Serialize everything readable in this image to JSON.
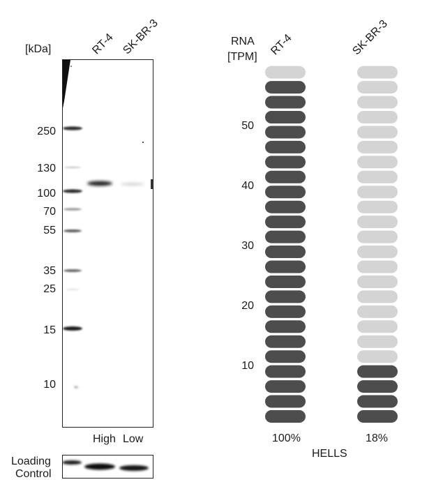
{
  "western_blot": {
    "unit_label": "[kDa]",
    "lanes": [
      "RT-4",
      "SK-BR-3"
    ],
    "markers": [
      "250",
      "130",
      "100",
      "70",
      "55",
      "35",
      "25",
      "15",
      "10"
    ],
    "intensity_labels": [
      "High",
      "Low"
    ],
    "loading_control_line1": "Loading",
    "loading_control_line2": "Control"
  },
  "rna": {
    "axis_label_line1": "RNA",
    "axis_label_line2": "[TPM]",
    "columns": [
      "RT-4",
      "SK-BR-3"
    ],
    "y_ticks": [
      "10",
      "20",
      "30",
      "40",
      "50"
    ],
    "percents": [
      "100%",
      "18%"
    ],
    "gene": "HELLS",
    "colors": {
      "filled": "#4d4d4d",
      "empty": "#d4d4d4"
    }
  },
  "chart_data": {
    "type": "bar",
    "categories": [
      "RT-4",
      "SK-BR-3"
    ],
    "values": [
      100,
      18
    ],
    "unit": "%",
    "total_segments": 24,
    "filled_segments": [
      23,
      4
    ],
    "ylabel": "RNA [TPM]",
    "y_ticks": [
      10,
      20,
      30,
      40,
      50
    ],
    "xlabel": "HELLS"
  }
}
